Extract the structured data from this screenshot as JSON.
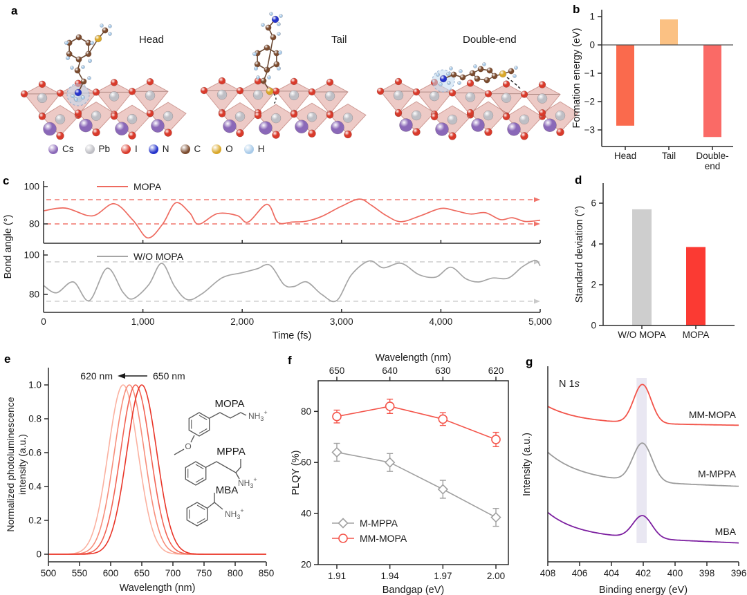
{
  "panel_a": {
    "label": "a",
    "titles": [
      "Head",
      "Tail",
      "Double-end"
    ],
    "legend": [
      {
        "element": "Cs",
        "color": "#8A68B8"
      },
      {
        "element": "Pb",
        "color": "#BFBFC5"
      },
      {
        "element": "I",
        "color": "#D93A2B"
      },
      {
        "element": "N",
        "color": "#2433CB"
      },
      {
        "element": "C",
        "color": "#7B4B2E"
      },
      {
        "element": "O",
        "color": "#D9A728"
      },
      {
        "element": "H",
        "color": "#A9CBE9"
      }
    ]
  },
  "chart_data": [
    {
      "id": "b",
      "panel_label": "b",
      "type": "bar",
      "ylabel": "Formation energy (eV)",
      "categories": [
        "Head",
        "Tail",
        "Double-end"
      ],
      "category_lines": [
        [
          "Head"
        ],
        [
          "Tail"
        ],
        [
          "Double-",
          "end"
        ]
      ],
      "values": [
        -2.85,
        0.9,
        -3.25
      ],
      "bar_colors": [
        "#FA6A4D",
        "#FBC183",
        "#FA6A66"
      ],
      "yticks": [
        1,
        0,
        -1,
        -2,
        -3
      ],
      "ylim": [
        -3.55,
        1.25
      ]
    },
    {
      "id": "c",
      "panel_label": "c",
      "type": "line",
      "xlabel": "Time (fs)",
      "ylabel": "Bond angle (°)",
      "xlim": [
        0,
        5000
      ],
      "xticks": [
        0,
        1000,
        2000,
        3000,
        4000,
        5000
      ],
      "xtick_labels": [
        "0",
        "1,000",
        "2,000",
        "3,000",
        "4,000",
        "5,000"
      ],
      "yticks": [
        80,
        100
      ],
      "series": [
        {
          "name": "MOPA",
          "color": "#EE6A5F",
          "guide_color": "#F0736A",
          "dashed_guides": [
            93,
            80
          ],
          "points": [
            [
              0,
              87
            ],
            [
              220,
              88.5
            ],
            [
              490,
              84.3
            ],
            [
              710,
              90.8
            ],
            [
              900,
              82
            ],
            [
              1050,
              72.5
            ],
            [
              1200,
              80
            ],
            [
              1330,
              91.3
            ],
            [
              1470,
              86
            ],
            [
              1560,
              79.8
            ],
            [
              1750,
              85.5
            ],
            [
              1950,
              84.5
            ],
            [
              2060,
              81
            ],
            [
              2250,
              90.5
            ],
            [
              2360,
              80.8
            ],
            [
              2500,
              81
            ],
            [
              2650,
              81.5
            ],
            [
              2800,
              84
            ],
            [
              3000,
              89.5
            ],
            [
              3180,
              93.3
            ],
            [
              3300,
              90
            ],
            [
              3450,
              84.5
            ],
            [
              3600,
              81.2
            ],
            [
              3800,
              84.5
            ],
            [
              4000,
              88.3
            ],
            [
              4150,
              87
            ],
            [
              4300,
              85.3
            ],
            [
              4450,
              86
            ],
            [
              4600,
              82.3
            ],
            [
              4720,
              83.3
            ],
            [
              4850,
              81.3
            ],
            [
              5000,
              82
            ]
          ]
        },
        {
          "name": "W/O MOPA",
          "color": "#A5A5A5",
          "guide_color": "#C9C9C9",
          "dashed_guides": [
            96.5,
            76.5
          ],
          "points": [
            [
              0,
              84.5
            ],
            [
              130,
              80.8
            ],
            [
              300,
              86.3
            ],
            [
              460,
              76.8
            ],
            [
              640,
              93.3
            ],
            [
              800,
              81
            ],
            [
              900,
              77.8
            ],
            [
              1060,
              85
            ],
            [
              1190,
              95.8
            ],
            [
              1320,
              84
            ],
            [
              1450,
              77.3
            ],
            [
              1600,
              80.5
            ],
            [
              1800,
              88.5
            ],
            [
              2000,
              91
            ],
            [
              2150,
              93
            ],
            [
              2280,
              94.8
            ],
            [
              2420,
              85
            ],
            [
              2520,
              84
            ],
            [
              2650,
              86.3
            ],
            [
              2800,
              80
            ],
            [
              2950,
              76.8
            ],
            [
              3100,
              90
            ],
            [
              3280,
              97
            ],
            [
              3420,
              93.5
            ],
            [
              3600,
              95.8
            ],
            [
              3780,
              90
            ],
            [
              3950,
              88.8
            ],
            [
              4100,
              93.8
            ],
            [
              4250,
              88
            ],
            [
              4380,
              86.3
            ],
            [
              4520,
              88.3
            ],
            [
              4680,
              88.3
            ],
            [
              4820,
              94
            ],
            [
              4950,
              97.3
            ],
            [
              5000,
              94.5
            ]
          ]
        }
      ]
    },
    {
      "id": "d",
      "panel_label": "d",
      "type": "bar",
      "ylabel": "Standard deviation (°)",
      "categories": [
        "W/O MOPA",
        "MOPA"
      ],
      "values": [
        5.7,
        3.85
      ],
      "bar_colors": [
        "#CECECE",
        "#FB3A33"
      ],
      "yticks": [
        0,
        2,
        4,
        6
      ],
      "ylim": [
        0,
        7
      ]
    },
    {
      "id": "e",
      "panel_label": "e",
      "type": "line",
      "xlabel": "Wavelength (nm)",
      "ylabel_lines": [
        "Normalized photoluminescence",
        "intensity (a.u.)"
      ],
      "xlim": [
        500,
        850
      ],
      "xticks": [
        500,
        550,
        600,
        650,
        700,
        750,
        800,
        850
      ],
      "ytick_labels": [
        "0",
        "0.2",
        "0.4",
        "0.6",
        "0.8",
        "1.0"
      ],
      "yticks": [
        0,
        0.2,
        0.4,
        0.6,
        0.8,
        1.0
      ],
      "annotation": {
        "left_label": "620 nm",
        "right_label": "650 nm"
      },
      "peaks": [
        {
          "center": 620,
          "sigma": 24,
          "height": 1.0,
          "color": "#FBB1A0"
        },
        {
          "center": 630,
          "sigma": 24,
          "height": 1.0,
          "color": "#F78E7B"
        },
        {
          "center": 640,
          "sigma": 24,
          "height": 1.0,
          "color": "#F26354"
        },
        {
          "center": 650,
          "sigma": 24,
          "height": 1.0,
          "color": "#E93528"
        }
      ],
      "molecule_labels": [
        "MOPA",
        "MPPA",
        "MBA"
      ],
      "amine": {
        "text": "NH",
        "sub": "3",
        "sup": "+"
      },
      "methoxy_o": "O"
    },
    {
      "id": "f",
      "panel_label": "f",
      "type": "scatter",
      "xlabel": "Bandgap (eV)",
      "ylabel": "PLQY (%)",
      "top_xlabel": "Wavelength (nm)",
      "x": [
        1.91,
        1.94,
        1.97,
        2.0
      ],
      "xtick_labels": [
        "1.91",
        "1.94",
        "1.97",
        "2.00"
      ],
      "top_xtick_labels": [
        "650",
        "640",
        "630",
        "620"
      ],
      "yticks": [
        20,
        40,
        60,
        80
      ],
      "ylim": [
        20,
        92
      ],
      "series": [
        {
          "name": "M-MPPA",
          "marker": "diamond",
          "color": "#A0A0A0",
          "values": [
            64,
            60,
            49.5,
            38.5
          ],
          "errors": [
            3.5,
            3.5,
            3.5,
            3.5
          ]
        },
        {
          "name": "MM-MOPA",
          "marker": "circle",
          "color": "#F4554B",
          "values": [
            78,
            82,
            77,
            69
          ],
          "errors": [
            2.5,
            2.8,
            2.5,
            2.8
          ]
        }
      ]
    },
    {
      "id": "g",
      "panel_label": "g",
      "type": "line",
      "xlabel": "Binding energy (eV)",
      "ylabel": "Intensity (a.u.)",
      "annotation": {
        "prefix": "N 1",
        "italic_suffix": "s"
      },
      "xlim": [
        408,
        396
      ],
      "xticks": [
        408,
        406,
        404,
        402,
        400,
        398,
        396
      ],
      "highlight_band": {
        "center": 402.1,
        "half_width": 0.32,
        "color": "#E9E7F2"
      },
      "peak_center_ev": 402.05,
      "series": [
        {
          "name": "MM-MOPA",
          "color": "#F25349",
          "offset": 0.76,
          "slope": 0.015,
          "edge": 0.09,
          "edge_tau": 2.0,
          "amp": 0.215,
          "sigma": 0.55,
          "label_y_v": 0.82
        },
        {
          "name": "M-MPPA",
          "color": "#9B9B9B",
          "offset": 0.42,
          "slope": 0.04,
          "edge": 0.15,
          "edge_tau": 2.0,
          "amp": 0.213,
          "sigma": 0.6,
          "label_y_v": 0.49
        },
        {
          "name": "MBA",
          "color": "#7C1FA0",
          "offset": 0.105,
          "slope": 0.045,
          "edge": 0.125,
          "edge_tau": 1.8,
          "amp": 0.125,
          "sigma": 0.6,
          "label_y_v": 0.17
        }
      ]
    }
  ]
}
